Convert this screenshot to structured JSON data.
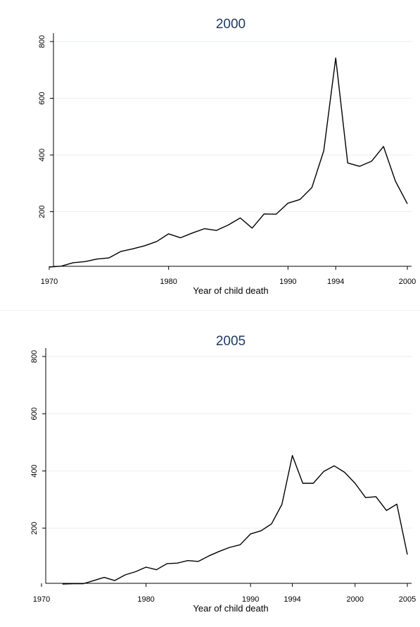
{
  "chart_data": [
    {
      "type": "line",
      "title": "2000",
      "xlabel": "Year of child death",
      "ylabel": "",
      "xlim": [
        1970,
        2000
      ],
      "ylim": [
        0,
        800
      ],
      "xticks": [
        1970,
        1980,
        1990,
        1994,
        2000
      ],
      "yticks": [
        200,
        400,
        600,
        800
      ],
      "grid": true,
      "x": [
        1970,
        1971,
        1972,
        1973,
        1974,
        1975,
        1976,
        1977,
        1978,
        1979,
        1980,
        1981,
        1982,
        1983,
        1984,
        1985,
        1986,
        1987,
        1988,
        1989,
        1990,
        1991,
        1992,
        1993,
        1994,
        1995,
        1996,
        1997,
        1998,
        1999,
        2000
      ],
      "y": [
        5,
        8,
        20,
        24,
        33,
        37,
        60,
        69,
        80,
        95,
        122,
        108,
        125,
        140,
        134,
        153,
        178,
        142,
        192,
        191,
        230,
        243,
        285,
        415,
        742,
        372,
        360,
        378,
        430,
        308,
        228
      ]
    },
    {
      "type": "line",
      "title": "2005",
      "xlabel": "Year of child death",
      "ylabel": "",
      "xlim": [
        1970,
        2005
      ],
      "ylim": [
        0,
        800
      ],
      "xticks": [
        1970,
        1980,
        1990,
        1994,
        2000,
        2005
      ],
      "yticks": [
        200,
        400,
        600,
        800
      ],
      "grid": true,
      "x": [
        1972,
        1973,
        1974,
        1975,
        1976,
        1977,
        1978,
        1979,
        1980,
        1981,
        1982,
        1983,
        1984,
        1985,
        1986,
        1987,
        1988,
        1989,
        1990,
        1991,
        1992,
        1993,
        1994,
        1995,
        1996,
        1997,
        1998,
        1999,
        2000,
        2001,
        2002,
        2003,
        2004,
        2005
      ],
      "y": [
        5,
        6,
        6,
        17,
        28,
        17,
        37,
        48,
        64,
        55,
        76,
        78,
        87,
        84,
        103,
        119,
        133,
        142,
        180,
        191,
        215,
        283,
        454,
        357,
        357,
        398,
        418,
        395,
        357,
        307,
        310,
        262,
        284,
        108
      ]
    }
  ]
}
